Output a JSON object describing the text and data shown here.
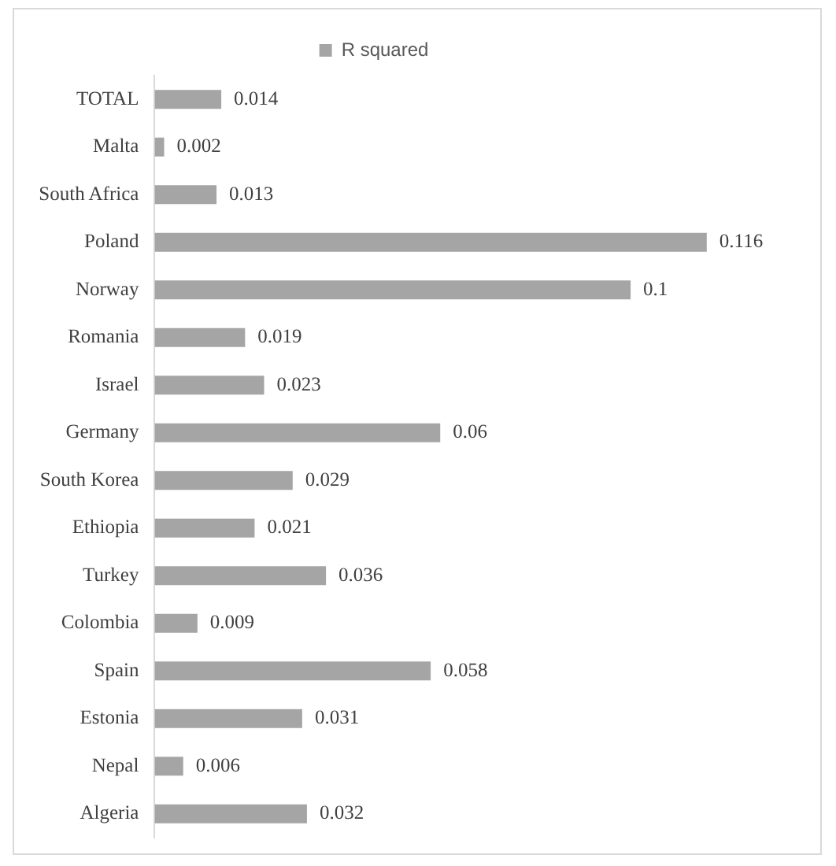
{
  "chart_data": {
    "type": "bar",
    "orientation": "horizontal",
    "categories": [
      "TOTAL",
      "Malta",
      "South Africa",
      "Poland",
      "Norway",
      "Romania",
      "Israel",
      "Germany",
      "South Korea",
      "Ethiopia",
      "Turkey",
      "Colombia",
      "Spain",
      "Estonia",
      "Nepal",
      "Algeria"
    ],
    "series": [
      {
        "name": "R squared",
        "color": "#a5a5a5",
        "values": [
          0.014,
          0.002,
          0.013,
          0.116,
          0.1,
          0.019,
          0.023,
          0.06,
          0.029,
          0.021,
          0.036,
          0.009,
          0.058,
          0.031,
          0.006,
          0.032
        ]
      }
    ],
    "tick_labels": "y",
    "data_labels": true,
    "grid": false,
    "legend": "top"
  }
}
